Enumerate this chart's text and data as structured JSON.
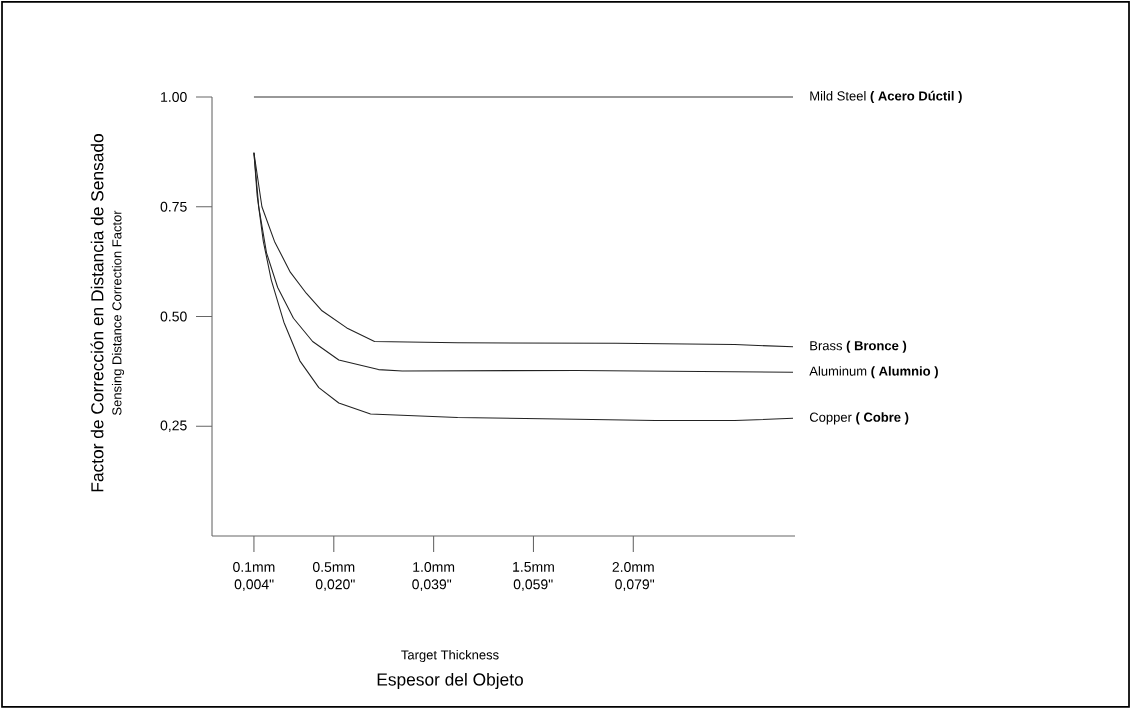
{
  "chart_data": {
    "type": "line",
    "xlabel": "Espesor del Objeto",
    "ylabel": "Factor de Corrección en Distancia de Sensado",
    "annotations": [
      "Sensing Distance Correction Factor",
      "Target Thickness"
    ],
    "xlim": [
      -0.11,
      2.81
    ],
    "ylim": [
      0,
      1
    ],
    "xticks": [
      {
        "value": 0.1,
        "label": "0.1mm"
      },
      {
        "value": 0.5,
        "label": "0.5mm"
      },
      {
        "value": 1,
        "label": "1.0mm"
      },
      {
        "value": 1.5,
        "label": "1.5mm"
      },
      {
        "value": 2,
        "label": "2.0mm"
      }
    ],
    "x2lim": [
      -0.0043,
      0.1106
    ],
    "x2ticks": [
      {
        "value": 0.004,
        "label": "0,004\""
      },
      {
        "value": 0.02,
        "label": "0,020\""
      },
      {
        "value": 0.039,
        "label": "0,039\""
      },
      {
        "value": 0.059,
        "label": "0,059\""
      },
      {
        "value": 0.079,
        "label": "0,079\""
      }
    ],
    "yticks": [
      {
        "value": 0.25,
        "label": "0,25"
      },
      {
        "value": 0.5,
        "label": "0.50"
      },
      {
        "value": 0.75,
        "label": "0.75"
      },
      {
        "value": 1,
        "label": "1.00"
      }
    ],
    "marker": "none",
    "line_style": "solid",
    "series": [
      {
        "name": "Mild Steel **( Acero Dúctil )**",
        "color": "#333333",
        "x": [
          0.1,
          2.8
        ],
        "values": [
          1,
          1
        ]
      },
      {
        "name": "Brass **( Bronce )**",
        "color": "#222222",
        "x": [
          0.1,
          0.14,
          0.203,
          0.282,
          0.362,
          0.441,
          0.565,
          0.704,
          1.12,
          1.913,
          2.508,
          2.8
        ],
        "values": [
          0.873,
          0.75,
          0.671,
          0.601,
          0.553,
          0.513,
          0.474,
          0.443,
          0.44,
          0.439,
          0.436,
          0.431
        ]
      },
      {
        "name": "Aluminum **( Alumnio )**",
        "color": "#222222",
        "x": [
          0.1,
          0.124,
          0.163,
          0.219,
          0.298,
          0.394,
          0.525,
          0.724,
          0.843,
          1.715,
          2.8
        ],
        "values": [
          0.873,
          0.75,
          0.645,
          0.566,
          0.496,
          0.443,
          0.401,
          0.379,
          0.376,
          0.377,
          0.373
        ]
      },
      {
        "name": "Copper **( Cobre )**",
        "color": "#222222",
        "x": [
          0.1,
          0.116,
          0.147,
          0.187,
          0.25,
          0.33,
          0.425,
          0.525,
          0.684,
          1.12,
          1.715,
          2.111,
          2.508,
          2.8
        ],
        "values": [
          0.873,
          0.776,
          0.671,
          0.583,
          0.487,
          0.399,
          0.338,
          0.303,
          0.278,
          0.27,
          0.266,
          0.263,
          0.263,
          0.268
        ]
      }
    ]
  }
}
